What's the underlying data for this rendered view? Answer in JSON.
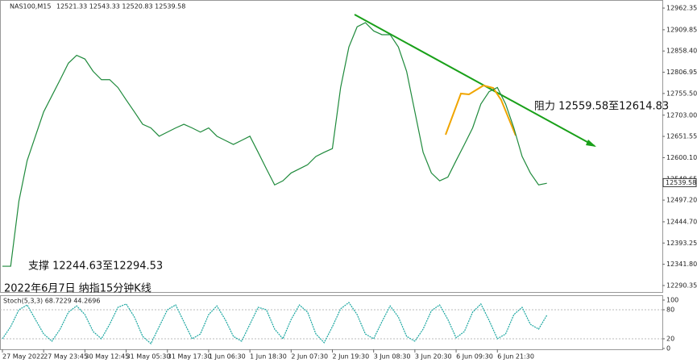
{
  "chart_data": [
    {
      "type": "line",
      "symbol": "NAS100,M15",
      "ohlc": "12521.33 12543.33 12520.83 12539.58",
      "annotations": [
        "阻力 12559.58至12614.83",
        "支撑 12244.63至12294.53",
        "2022年6月7日 纳指15分钟K线"
      ],
      "last_price": 12539.58,
      "xlim": [
        0,
        80
      ],
      "xticks": [
        {
          "value": 0,
          "label": "27 May 2022"
        },
        {
          "value": 5,
          "label": "27 May 23:45"
        },
        {
          "value": 10,
          "label": "30 May 12:45"
        },
        {
          "value": 15,
          "label": "31 May 05:30"
        },
        {
          "value": 20,
          "label": "31 May 17:30"
        },
        {
          "value": 25,
          "label": "1 Jun 06:30"
        },
        {
          "value": 30,
          "label": "1 Jun 18:30"
        },
        {
          "value": 35,
          "label": "2 Jun 07:30"
        },
        {
          "value": 40,
          "label": "2 Jun 19:30"
        },
        {
          "value": 45,
          "label": "3 Jun 08:30"
        },
        {
          "value": 50,
          "label": "3 Jun 20:30"
        },
        {
          "value": 55,
          "label": "6 Jun 09:30"
        },
        {
          "value": 60,
          "label": "6 Jun 21:30"
        }
      ],
      "ylim": [
        12274.6,
        12980.0
      ],
      "yticks": [
        12962.35,
        12909.85,
        {
          "value": 12858.4,
          "label": "12858.40"
        },
        12806.95,
        {
          "value": 12755.5,
          "label": "12755.50"
        },
        {
          "value": 12703,
          "label": "12703.00"
        },
        12651.55,
        {
          "value": 12600.1,
          "label": "12600.10"
        },
        12548.65,
        {
          "value": 12497.2,
          "label": "12497.20"
        },
        {
          "value": 12444.7,
          "label": "12444.70"
        },
        12393.25,
        {
          "value": 12341.8,
          "label": "12341.80"
        },
        12290.35
      ],
      "grid": false,
      "series": [
        {
          "color": "#1f8a3c",
          "values": [
            12337,
            12337,
            12495,
            12593,
            12652,
            12711,
            12750,
            12789,
            12829,
            12848,
            12839,
            12809,
            12789,
            12789,
            12770,
            12740,
            12711,
            12681,
            12672,
            12652,
            12662,
            12672,
            12681,
            12672,
            12662,
            12672,
            12652,
            12642,
            12632,
            12642,
            12652,
            12613,
            12573,
            12534,
            12544,
            12563,
            12573,
            12583,
            12603,
            12613,
            12622,
            12770,
            12868,
            12917,
            12927,
            12907,
            12898,
            12898,
            12868,
            12809,
            12711,
            12613,
            12563,
            12544,
            12553,
            12593,
            12632,
            12672,
            12730,
            12760,
            12770,
            12730,
            12672,
            12603,
            12563,
            12534,
            12538
          ]
        }
      ]
    },
    {
      "type": "line",
      "title": "Stoch(5,3,3) 68.7229 44.2696",
      "xlim": [
        0,
        80
      ],
      "ylim": [
        0,
        100
      ],
      "yticks": [
        100,
        80,
        20,
        0
      ],
      "series": [
        {
          "color": "#1aa6a0",
          "values": [
            20,
            45,
            80,
            90,
            60,
            30,
            15,
            40,
            75,
            88,
            70,
            35,
            20,
            50,
            85,
            92,
            65,
            25,
            10,
            45,
            80,
            90,
            55,
            20,
            30,
            70,
            88,
            60,
            25,
            15,
            50,
            85,
            80,
            40,
            20,
            60,
            90,
            75,
            30,
            12,
            45,
            82,
            95,
            70,
            30,
            20,
            55,
            88,
            65,
            25,
            15,
            40,
            78,
            90,
            60,
            22,
            35,
            75,
            92,
            58,
            20,
            30,
            70,
            85,
            50,
            40,
            68.7229
          ]
        }
      ]
    }
  ]
}
